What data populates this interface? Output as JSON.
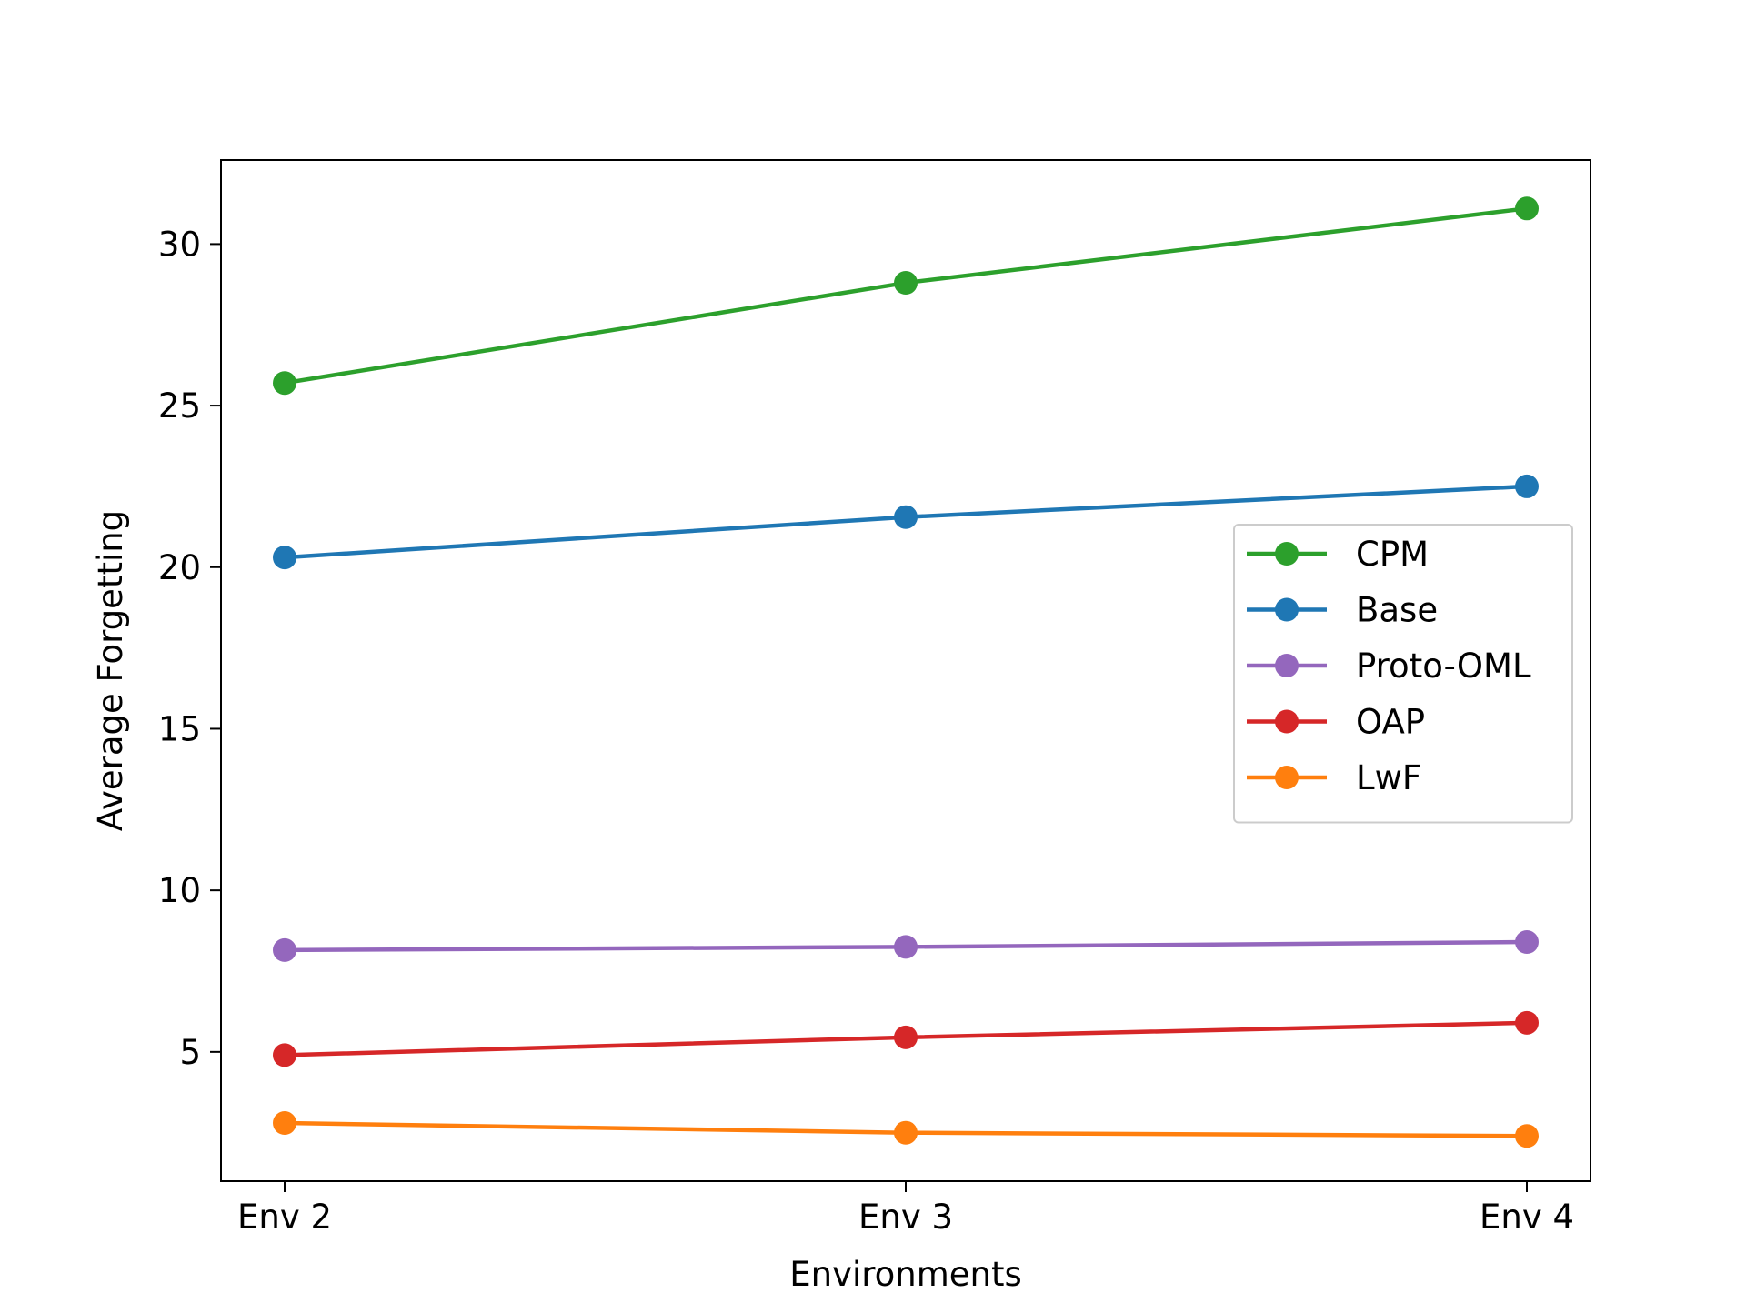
{
  "chart_data": {
    "type": "line",
    "title": "",
    "xlabel": "Environments",
    "ylabel": "Average Forgetting",
    "categories": [
      "Env 2",
      "Env 3",
      "Env 4"
    ],
    "ylim": [
      1.0,
      32.6
    ],
    "yticks": [
      5,
      10,
      15,
      20,
      25,
      30
    ],
    "grid": false,
    "legend_position": "center-right",
    "series": [
      {
        "name": "CPM",
        "color": "#2ca02c",
        "values": [
          25.7,
          28.8,
          31.1
        ]
      },
      {
        "name": "Base",
        "color": "#1f77b4",
        "values": [
          20.3,
          21.55,
          22.5
        ]
      },
      {
        "name": "Proto-OML",
        "color": "#9467bd",
        "values": [
          8.15,
          8.25,
          8.4
        ]
      },
      {
        "name": "OAP",
        "color": "#d62728",
        "values": [
          4.9,
          5.45,
          5.9
        ]
      },
      {
        "name": "LwF",
        "color": "#ff7f0e",
        "values": [
          2.8,
          2.5,
          2.4
        ]
      }
    ]
  }
}
